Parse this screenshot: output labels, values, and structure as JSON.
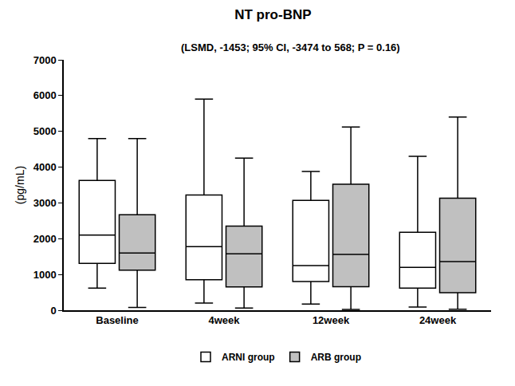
{
  "chart_data": {
    "type": "box",
    "title": "NT pro-BNP",
    "subtitle": "(LSMD, -1453; 95% CI, -3474 to 568; P = 0.16)",
    "y_label": "(pg/mL)",
    "categories": [
      "Baseline",
      "4week",
      "12week",
      "24week"
    ],
    "series": [
      {
        "name": "ARNI group",
        "color": "#ffffff",
        "min": [
          620,
          200,
          170,
          90
        ],
        "q1": [
          1310,
          850,
          800,
          620
        ],
        "median": [
          2100,
          1780,
          1250,
          1200
        ],
        "q3": [
          3630,
          3220,
          3070,
          2180
        ],
        "max": [
          4800,
          5900,
          3880,
          4300
        ]
      },
      {
        "name": "ARB group",
        "color": "#c0c0c0",
        "min": [
          80,
          60,
          20,
          30
        ],
        "q1": [
          1120,
          650,
          660,
          490
        ],
        "median": [
          1600,
          1580,
          1560,
          1360
        ],
        "q3": [
          2670,
          2350,
          3520,
          3130
        ],
        "max": [
          4800,
          4250,
          5120,
          5400
        ]
      }
    ],
    "ylim": [
      0,
      7000
    ],
    "yticks": [
      0,
      1000,
      2000,
      3000,
      4000,
      5000,
      6000,
      7000
    ],
    "grid": false,
    "legend": "bottom"
  }
}
